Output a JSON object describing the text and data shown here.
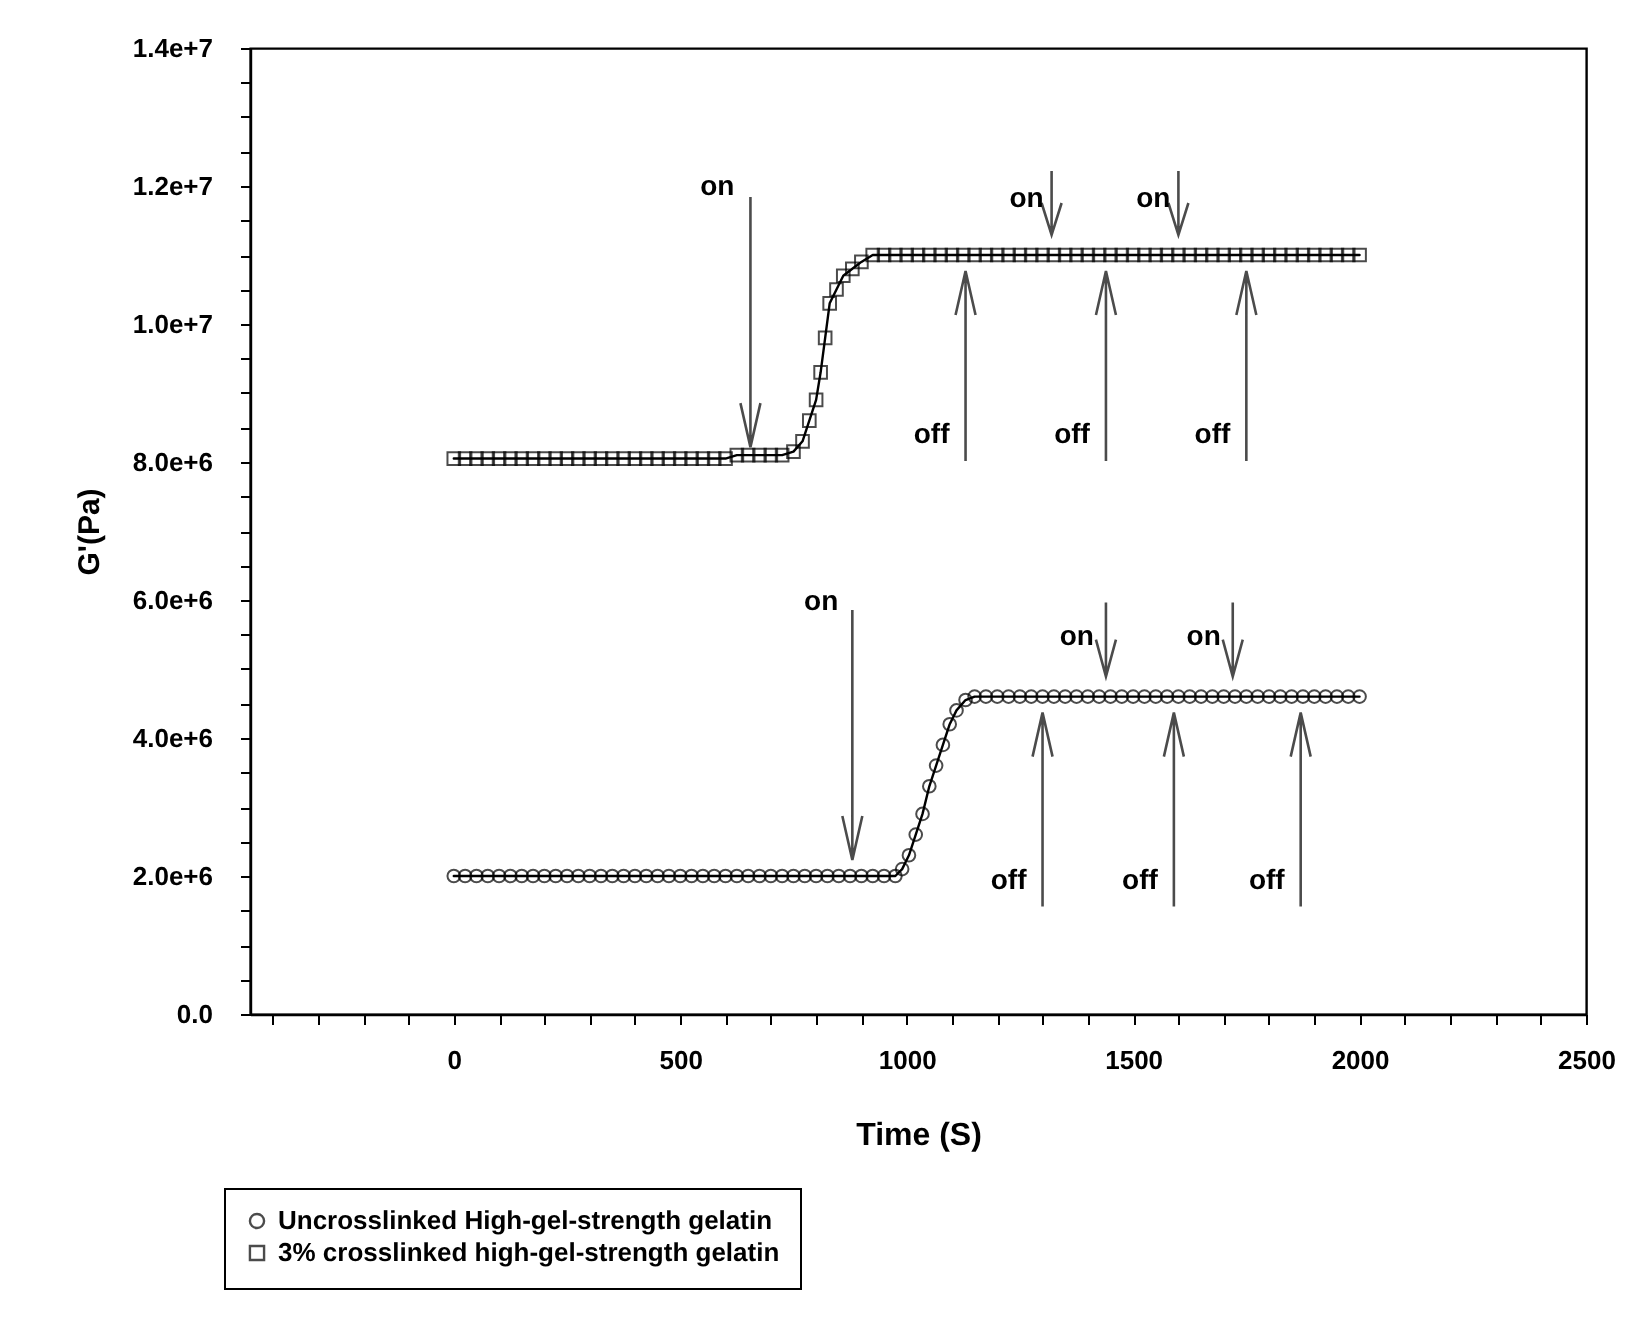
{
  "chart_data": {
    "type": "line",
    "xlabel": "Time (S)",
    "ylabel": "G'(Pa)",
    "xlim": [
      -450,
      2500
    ],
    "xticks": [
      {
        "value": -400,
        "label": null
      },
      {
        "value": -300,
        "label": null
      },
      {
        "value": -200,
        "label": null
      },
      {
        "value": -100,
        "label": null
      },
      0,
      {
        "value": 100,
        "label": null
      },
      {
        "value": 200,
        "label": null
      },
      {
        "value": 300,
        "label": null
      },
      {
        "value": 400,
        "label": null
      },
      500,
      {
        "value": 600,
        "label": null
      },
      {
        "value": 700,
        "label": null
      },
      {
        "value": 800,
        "label": null
      },
      {
        "value": 900,
        "label": null
      },
      1000,
      {
        "value": 1100,
        "label": null
      },
      {
        "value": 1200,
        "label": null
      },
      {
        "value": 1300,
        "label": null
      },
      {
        "value": 1400,
        "label": null
      },
      1500,
      {
        "value": 1600,
        "label": null
      },
      {
        "value": 1700,
        "label": null
      },
      {
        "value": 1800,
        "label": null
      },
      {
        "value": 1900,
        "label": null
      },
      2000,
      {
        "value": 2100,
        "label": null
      },
      {
        "value": 2200,
        "label": null
      },
      {
        "value": 2300,
        "label": null
      },
      {
        "value": 2400,
        "label": null
      },
      2500
    ],
    "ylim": [
      0,
      14000000
    ],
    "yticks": [
      {
        "value": 0,
        "label": "0.0"
      },
      {
        "value": 500000,
        "label": null
      },
      {
        "value": 1000000,
        "label": null
      },
      {
        "value": 1500000,
        "label": null
      },
      {
        "value": 2000000,
        "label": "2.0e+6"
      },
      {
        "value": 2500000,
        "label": null
      },
      {
        "value": 3000000,
        "label": null
      },
      {
        "value": 3500000,
        "label": null
      },
      {
        "value": 4000000,
        "label": "4.0e+6"
      },
      {
        "value": 4500000,
        "label": null
      },
      {
        "value": 5000000,
        "label": null
      },
      {
        "value": 5500000,
        "label": null
      },
      {
        "value": 6000000,
        "label": "6.0e+6"
      },
      {
        "value": 6500000,
        "label": null
      },
      {
        "value": 7000000,
        "label": null
      },
      {
        "value": 7500000,
        "label": null
      },
      {
        "value": 8000000,
        "label": "8.0e+6"
      },
      {
        "value": 8500000,
        "label": null
      },
      {
        "value": 9000000,
        "label": null
      },
      {
        "value": 9500000,
        "label": null
      },
      {
        "value": 10000000,
        "label": "1.0e+7"
      },
      {
        "value": 10500000,
        "label": null
      },
      {
        "value": 11000000,
        "label": null
      },
      {
        "value": 11500000,
        "label": null
      },
      {
        "value": 12000000,
        "label": "1.2e+7"
      },
      {
        "value": 12500000,
        "label": null
      },
      {
        "value": 13000000,
        "label": null
      },
      {
        "value": 13500000,
        "label": null
      },
      {
        "value": 14000000,
        "label": "1.4e+7"
      }
    ],
    "grid": false,
    "legend": "bottom left",
    "line_style": "solid",
    "series": [
      {
        "name": "Uncrosslinked High-gel-strength gelatin",
        "color": "#000000",
        "marker": "circle",
        "x": [
          0,
          25,
          50,
          75,
          100,
          125,
          150,
          175,
          200,
          225,
          250,
          275,
          300,
          325,
          350,
          375,
          400,
          425,
          450,
          475,
          500,
          525,
          550,
          575,
          600,
          625,
          650,
          675,
          700,
          725,
          750,
          775,
          800,
          825,
          850,
          875,
          900,
          925,
          950,
          975,
          990,
          1005,
          1020,
          1035,
          1050,
          1065,
          1080,
          1095,
          1110,
          1130,
          1150,
          1175,
          1200,
          1225,
          1250,
          1275,
          1300,
          1325,
          1350,
          1375,
          1400,
          1425,
          1450,
          1475,
          1500,
          1525,
          1550,
          1575,
          1600,
          1625,
          1650,
          1675,
          1700,
          1725,
          1750,
          1775,
          1800,
          1825,
          1850,
          1875,
          1900,
          1925,
          1950,
          1975,
          2000
        ],
        "values": [
          2000000,
          2000000,
          2000000,
          2000000,
          2000000,
          2000000,
          2000000,
          2000000,
          2000000,
          2000000,
          2000000,
          2000000,
          2000000,
          2000000,
          2000000,
          2000000,
          2000000,
          2000000,
          2000000,
          2000000,
          2000000,
          2000000,
          2000000,
          2000000,
          2000000,
          2000000,
          2000000,
          2000000,
          2000000,
          2000000,
          2000000,
          2000000,
          2000000,
          2000000,
          2000000,
          2000000,
          2000000,
          2000000,
          2000000,
          2000000,
          2100000,
          2300000,
          2600000,
          2900000,
          3300000,
          3600000,
          3900000,
          4200000,
          4400000,
          4550000,
          4600000,
          4600000,
          4600000,
          4600000,
          4600000,
          4600000,
          4600000,
          4600000,
          4600000,
          4600000,
          4600000,
          4600000,
          4600000,
          4600000,
          4600000,
          4600000,
          4600000,
          4600000,
          4600000,
          4600000,
          4600000,
          4600000,
          4600000,
          4600000,
          4600000,
          4600000,
          4600000,
          4600000,
          4600000,
          4600000,
          4600000,
          4600000,
          4600000,
          4600000,
          4600000
        ]
      },
      {
        "name": "3% crosslinked high-gel-strength gelatin",
        "color": "#000000",
        "marker": "square",
        "x": [
          0,
          25,
          50,
          75,
          100,
          125,
          150,
          175,
          200,
          225,
          250,
          275,
          300,
          325,
          350,
          375,
          400,
          425,
          450,
          475,
          500,
          525,
          550,
          575,
          600,
          625,
          650,
          675,
          700,
          725,
          750,
          770,
          785,
          800,
          810,
          820,
          830,
          845,
          860,
          880,
          900,
          925,
          950,
          975,
          1000,
          1025,
          1050,
          1075,
          1100,
          1125,
          1150,
          1175,
          1200,
          1225,
          1250,
          1275,
          1300,
          1325,
          1350,
          1375,
          1400,
          1425,
          1450,
          1475,
          1500,
          1525,
          1550,
          1575,
          1600,
          1625,
          1650,
          1675,
          1700,
          1725,
          1750,
          1775,
          1800,
          1825,
          1850,
          1875,
          1900,
          1925,
          1950,
          1975,
          2000
        ],
        "values": [
          8050000,
          8050000,
          8050000,
          8050000,
          8050000,
          8050000,
          8050000,
          8050000,
          8050000,
          8050000,
          8050000,
          8050000,
          8050000,
          8050000,
          8050000,
          8050000,
          8050000,
          8050000,
          8050000,
          8050000,
          8050000,
          8050000,
          8050000,
          8050000,
          8050000,
          8100000,
          8100000,
          8100000,
          8100000,
          8100000,
          8150000,
          8300000,
          8600000,
          8900000,
          9300000,
          9800000,
          10300000,
          10500000,
          10700000,
          10800000,
          10900000,
          11000000,
          11000000,
          11000000,
          11000000,
          11000000,
          11000000,
          11000000,
          11000000,
          11000000,
          11000000,
          11000000,
          11000000,
          11000000,
          11000000,
          11000000,
          11000000,
          11000000,
          11000000,
          11000000,
          11000000,
          11000000,
          11000000,
          11000000,
          11000000,
          11000000,
          11000000,
          11000000,
          11000000,
          11000000,
          11000000,
          11000000,
          11000000,
          11000000,
          11000000,
          11000000,
          11000000,
          11000000,
          11000000,
          11000000,
          11000000,
          11000000,
          11000000,
          11000000,
          11000000
        ]
      }
    ],
    "annotations": [
      {
        "text": "on",
        "x": 655,
        "y": 8100000
      },
      {
        "text": "on",
        "x": 1320,
        "y": 11000000
      },
      {
        "text": "on",
        "x": 1600,
        "y": 11000000
      },
      {
        "text": "off",
        "x": 1130,
        "y": 11000000
      },
      {
        "text": "off",
        "x": 1440,
        "y": 11000000
      },
      {
        "text": "off",
        "x": 1750,
        "y": 11000000
      },
      {
        "text": "on",
        "x": 880,
        "y": 2000000
      },
      {
        "text": "on",
        "x": 1440,
        "y": 4600000
      },
      {
        "text": "on",
        "x": 1720,
        "y": 4600000
      },
      {
        "text": "off",
        "x": 1300,
        "y": 4600000
      },
      {
        "text": "off",
        "x": 1590,
        "y": 4600000
      },
      {
        "text": "off",
        "x": 1870,
        "y": 4600000
      }
    ]
  }
}
